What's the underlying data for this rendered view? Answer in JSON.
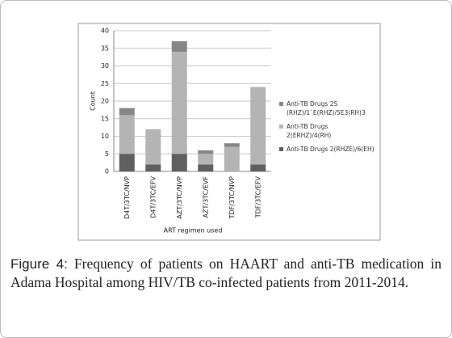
{
  "chart_data": {
    "type": "stacked-bar",
    "categories": [
      "D4T/3TC/NVP",
      "D4T/3TC/EFV",
      "AZT/3TC/NVP",
      "AZT/3TC/EVF",
      "TDF/3TC/NVP",
      "TDF/3TC/EFV"
    ],
    "series": [
      {
        "name": "Anti-TB Drugs 2(RHZE)/6(EH)",
        "color": "#5f5f5f",
        "values": [
          5,
          2,
          5,
          2,
          0,
          2
        ]
      },
      {
        "name": "Anti-TB Drugs 2(ERHZ)/4(RH)",
        "color": "#b4b4b4",
        "values": [
          11,
          10,
          29,
          3,
          7,
          22
        ]
      },
      {
        "name": "Anti-TB Drugs 2S (RHZ)/1`E(RHZ)/5E3(RH)3",
        "color": "#868686",
        "values": [
          2,
          0,
          3,
          1,
          1,
          0
        ]
      }
    ],
    "x_label": "ART regimen used",
    "y_label": "Count",
    "ylim": [
      0,
      40
    ],
    "yticks": [
      0,
      5,
      10,
      15,
      20,
      25,
      30,
      35,
      40
    ],
    "grid": true
  },
  "figure": {
    "label": "Figure 4:",
    "caption": "Frequency of patients on HAART and anti-TB medication in Adama Hospital among HIV/TB co-infected patients from 2011-2014."
  }
}
